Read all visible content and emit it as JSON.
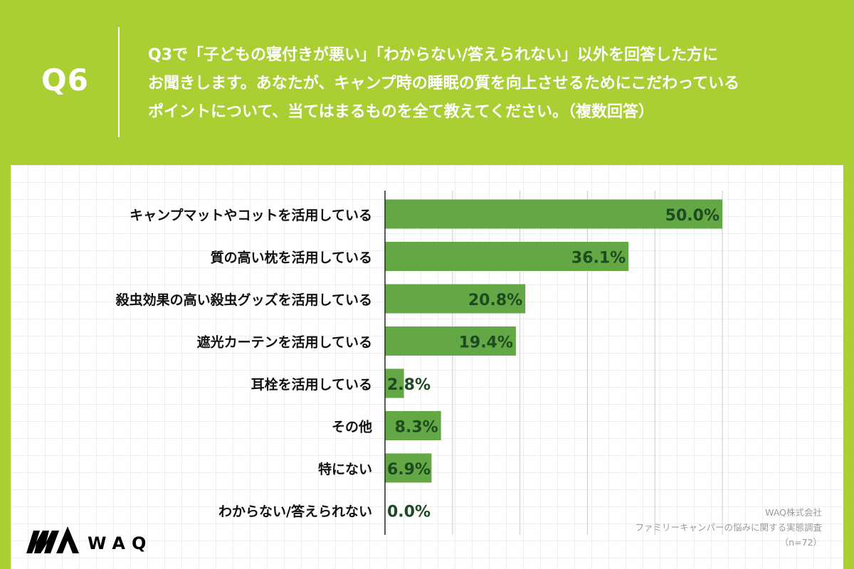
{
  "header": {
    "question_label": "Q6",
    "question_lines": [
      "Q3で「子どもの寝付きが悪い」「わからない/答えられない」以外を回答した方に",
      "お聞きします。あなたが、キャンプ時の睡眠の質を向上させるためにこだわっている",
      "ポイントについて、当てはまるものを全て教えてください。（複数回答）"
    ]
  },
  "chart_data": {
    "type": "bar",
    "orientation": "horizontal",
    "categories": [
      "キャンプマットやコットを活用している",
      "質の高い枕を活用している",
      "殺虫効果の高い殺虫グッズを活用している",
      "遮光カーテンを活用している",
      "耳栓を活用している",
      "その他",
      "特にない",
      "わからない/答えられない"
    ],
    "values": [
      50.0,
      36.1,
      20.8,
      19.4,
      2.8,
      8.3,
      6.9,
      0.0
    ],
    "value_labels": [
      "50.0%",
      "36.1%",
      "20.8%",
      "19.4%",
      "2.8%",
      "8.3%",
      "6.9%",
      "0.0%"
    ],
    "unit": "%",
    "xlim": [
      0,
      50
    ],
    "grid": true,
    "bar_color": "#63a845",
    "label_color": "#1e4a22"
  },
  "credit": {
    "company": "WAQ株式会社",
    "survey": "ファミリーキャンパーの悩みに関する実態調査",
    "sample": "（n=72）"
  },
  "logo": {
    "text": "WAQ",
    "color": "#000000"
  },
  "colors": {
    "background": "#a9cf32",
    "panel": "#ffffff"
  }
}
